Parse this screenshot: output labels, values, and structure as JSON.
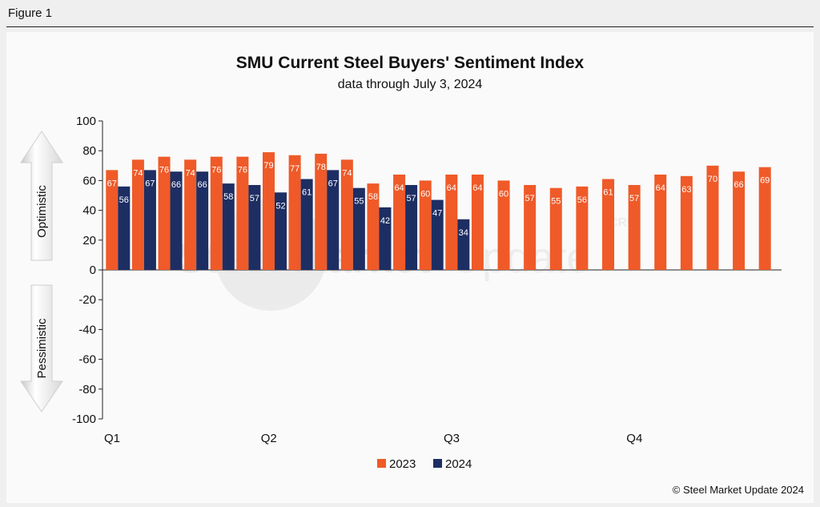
{
  "figure_label": "Figure 1",
  "footer": "© Steel Market Update 2024",
  "watermark": {
    "brand_left": "Steel Market",
    "brand_right": "Update",
    "mark": "CRU"
  },
  "arrows": {
    "up_label": "Optimistic",
    "down_label": "Pessimistic"
  },
  "colors": {
    "series_2023": "#ef5a28",
    "series_2024": "#1d2e63",
    "axis": "#222222",
    "background": "#fafafa"
  },
  "chart_data": {
    "type": "bar",
    "title": "SMU Current Steel Buyers' Sentiment Index",
    "subtitle": "data through July 3, 2024",
    "ylim": [
      -100,
      100
    ],
    "yticks": [
      100,
      80,
      60,
      40,
      20,
      0,
      -20,
      -40,
      -60,
      -80,
      -100
    ],
    "quarter_labels": [
      {
        "label": "Q1",
        "index": 0
      },
      {
        "label": "Q2",
        "index": 6
      },
      {
        "label": "Q3",
        "index": 13
      },
      {
        "label": "Q4",
        "index": 20
      }
    ],
    "legend_position": "bottom",
    "grid": false,
    "series": [
      {
        "name": "2023",
        "color": "#ef5a28",
        "values": [
          67,
          74,
          76,
          74,
          76,
          76,
          79,
          77,
          78,
          74,
          58,
          64,
          60,
          64,
          64,
          60,
          57,
          55,
          56,
          61,
          57,
          64,
          63,
          70,
          66,
          69
        ]
      },
      {
        "name": "2024",
        "color": "#1d2e63",
        "values": [
          56,
          67,
          66,
          66,
          58,
          57,
          52,
          61,
          67,
          55,
          42,
          57,
          47,
          34
        ]
      }
    ]
  }
}
